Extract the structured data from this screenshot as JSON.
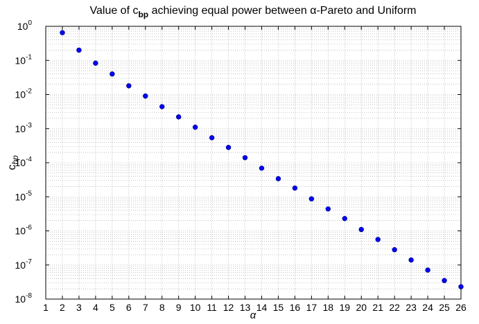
{
  "chart_data": {
    "type": "scatter",
    "title": [
      "Value of c",
      "bp",
      " achieving equal power between α-Pareto and Uniform"
    ],
    "xlabel": "α",
    "ylabel": [
      "c",
      "bp"
    ],
    "x": [
      2,
      3,
      4,
      5,
      6,
      7,
      8,
      9,
      10,
      11,
      12,
      13,
      14,
      15,
      16,
      17,
      18,
      19,
      20,
      21,
      22,
      23,
      24,
      25,
      26
    ],
    "values": [
      0.65,
      0.2,
      0.083,
      0.04,
      0.018,
      0.009,
      0.0044,
      0.0022,
      0.0011,
      0.00054,
      0.00028,
      0.00014,
      6.9e-05,
      3.4e-05,
      1.8e-05,
      8.7e-06,
      4.4e-06,
      2.3e-06,
      1.1e-06,
      5.6e-07,
      2.8e-07,
      1.4e-07,
      7.1e-08,
      3.5e-08,
      2.3e-08
    ],
    "color": "#0000ff",
    "xlim": [
      1,
      26
    ],
    "xticks": [
      1,
      2,
      3,
      4,
      5,
      6,
      7,
      8,
      9,
      10,
      11,
      12,
      13,
      14,
      15,
      16,
      17,
      18,
      19,
      20,
      21,
      22,
      23,
      24,
      25,
      26
    ],
    "ylim": [
      1e-08,
      1
    ],
    "yscale": "log",
    "yticks": [
      {
        "value": 1e-08,
        "label": "10",
        "exp": "-8"
      },
      {
        "value": 1e-07,
        "label": "10",
        "exp": "-7"
      },
      {
        "value": 1e-06,
        "label": "10",
        "exp": "-6"
      },
      {
        "value": 1e-05,
        "label": "10",
        "exp": "-5"
      },
      {
        "value": 0.0001,
        "label": "10",
        "exp": "-4"
      },
      {
        "value": 0.001,
        "label": "10",
        "exp": "-3"
      },
      {
        "value": 0.01,
        "label": "10",
        "exp": "-2"
      },
      {
        "value": 0.1,
        "label": "10",
        "exp": "-1"
      },
      {
        "value": 1,
        "label": "10",
        "exp": "0"
      }
    ],
    "grid": true
  }
}
